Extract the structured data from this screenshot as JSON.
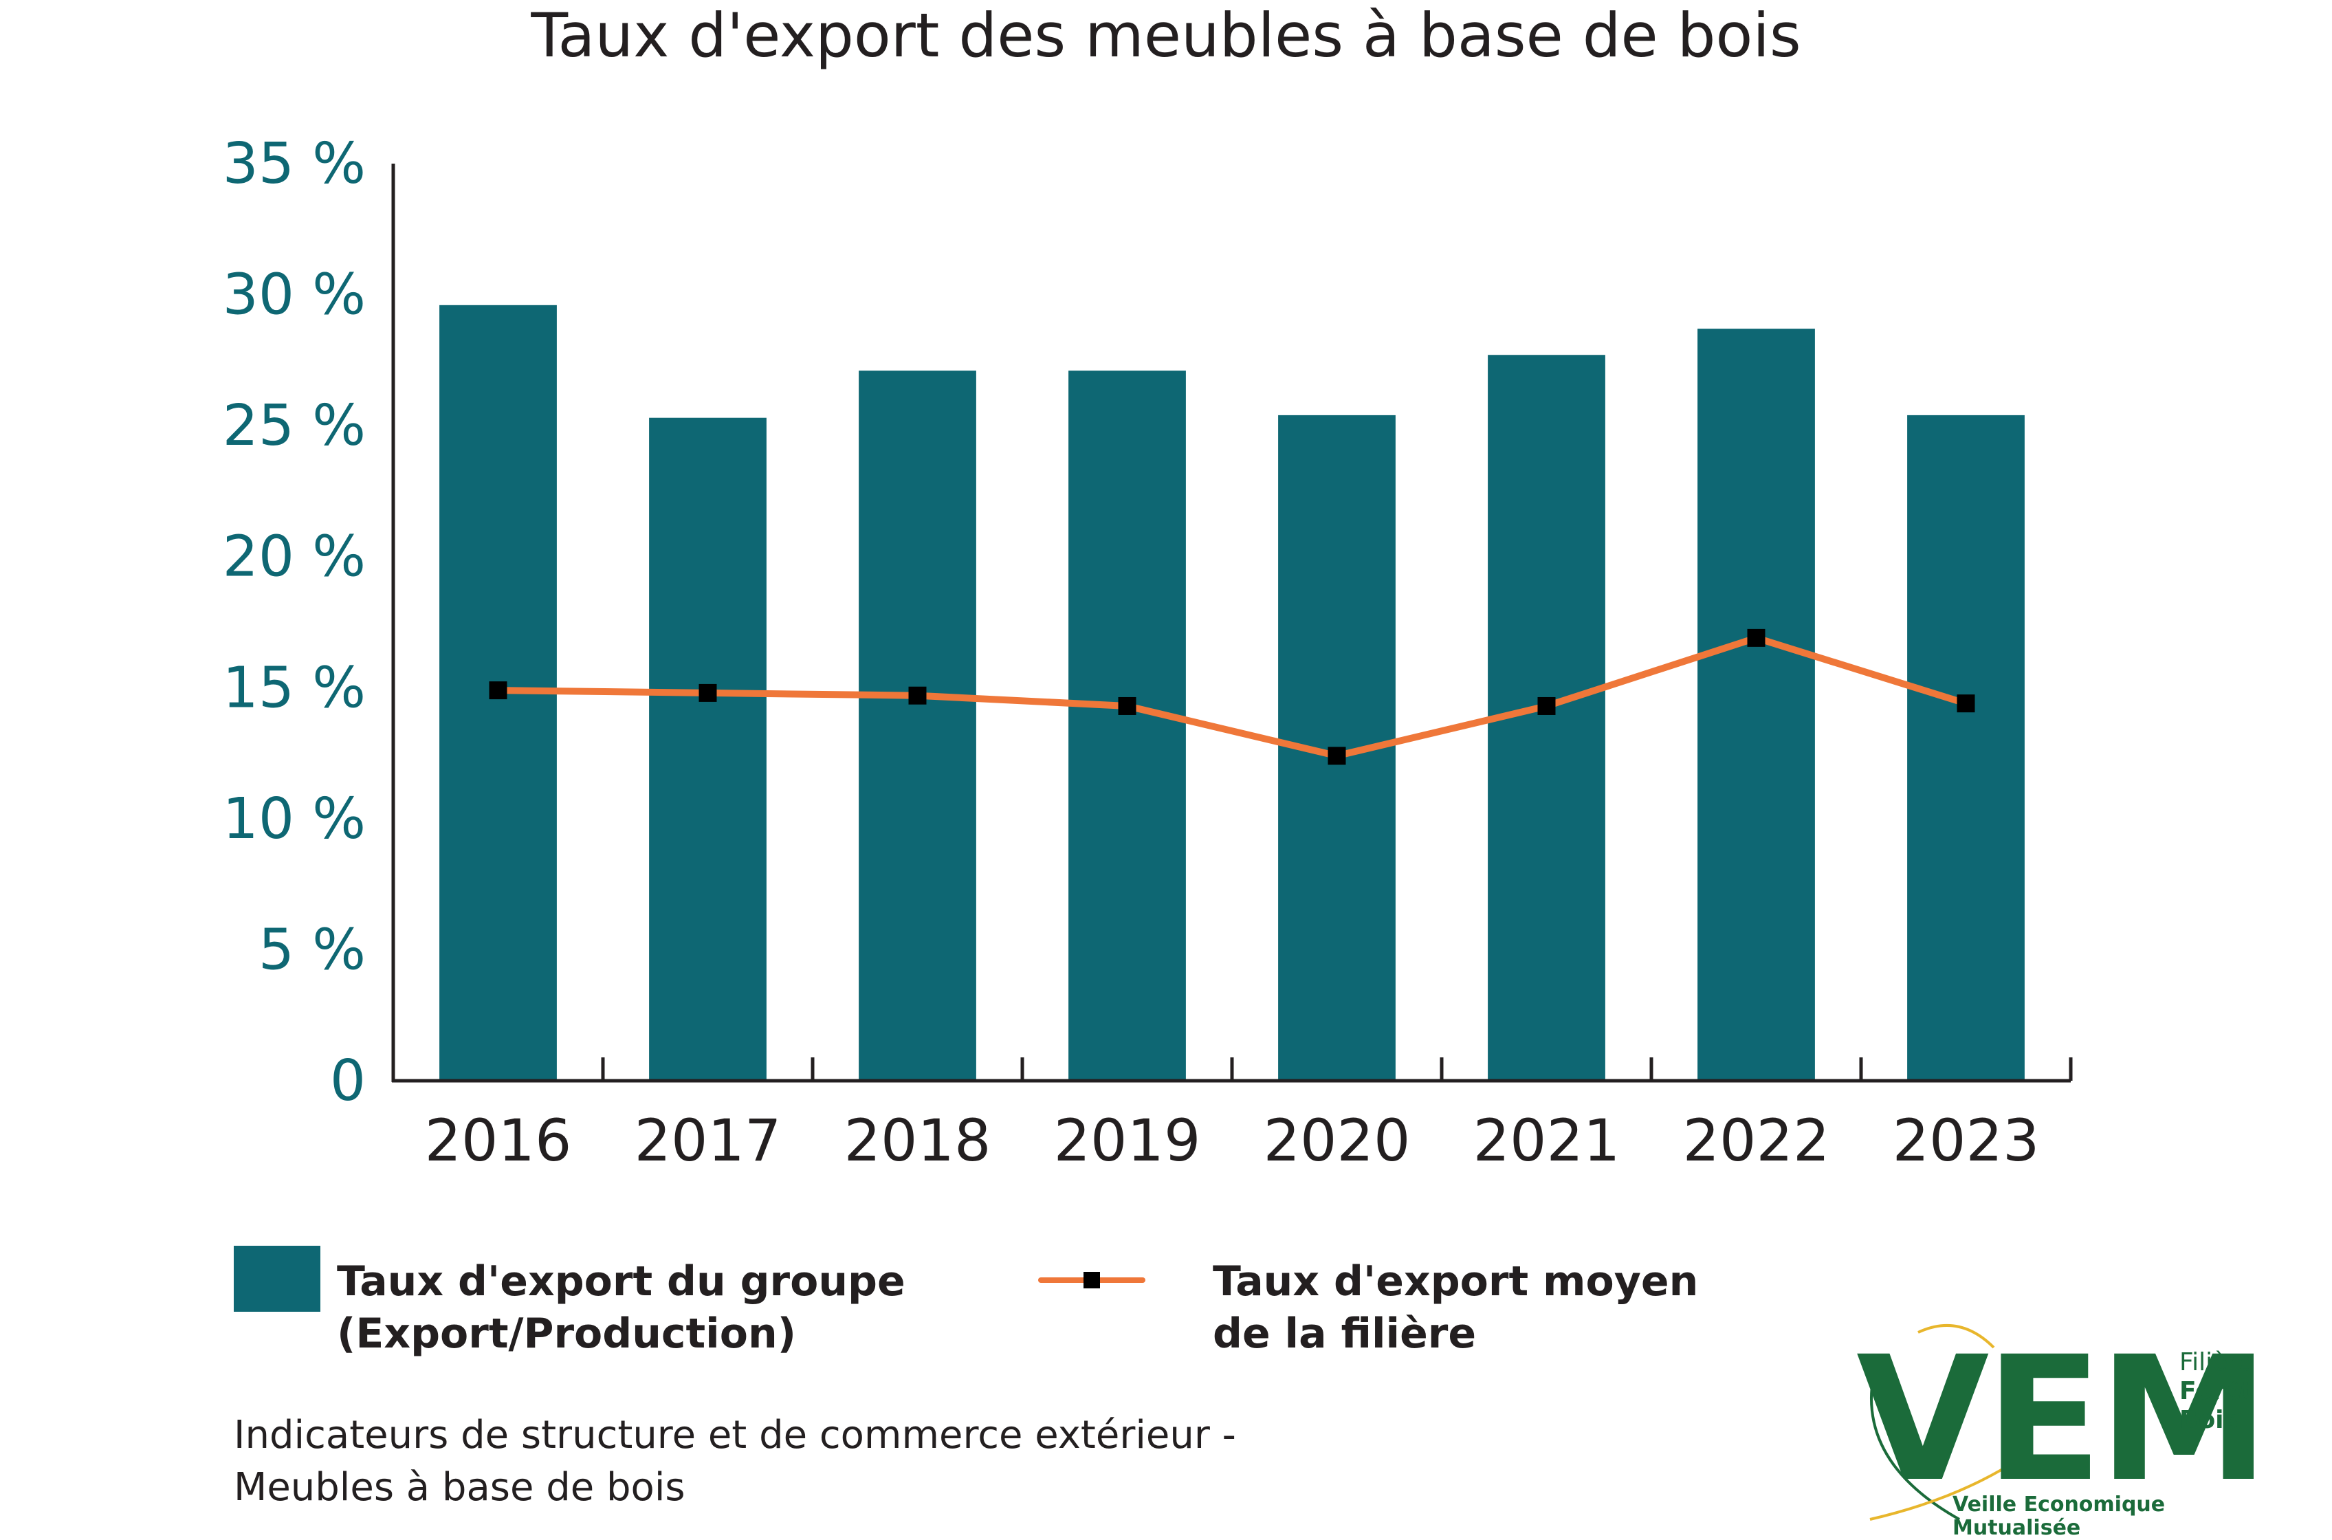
{
  "title": "Taux d'export des meubles à base de bois",
  "chart_data": {
    "type": "bar",
    "title": "Taux d'export des meubles à base de bois",
    "categories": [
      "2016",
      "2017",
      "2018",
      "2019",
      "2020",
      "2021",
      "2022",
      "2023"
    ],
    "series": [
      {
        "name": "Taux d'export du groupe (Export/Production)",
        "type": "bar",
        "color": "#0e6773",
        "values": [
          29.6,
          25.3,
          27.1,
          27.1,
          25.4,
          27.7,
          28.7,
          25.4
        ]
      },
      {
        "name": "Taux d'export moyen de la filière",
        "type": "line",
        "color": "#ef7739",
        "marker_color": "#000000",
        "values": [
          14.9,
          14.8,
          14.7,
          14.3,
          12.4,
          14.3,
          16.9,
          14.4
        ]
      }
    ],
    "yticks": [
      "0",
      "5 %",
      "10 %",
      "15 %",
      "20 %",
      "25 %",
      "30 %",
      "35 %"
    ],
    "ylim": [
      0,
      35
    ],
    "grid": false,
    "legend_position": "bottom"
  },
  "legend": {
    "bar_line1": "Taux d'export du groupe",
    "bar_line2": "(Export/Production)",
    "line_line1": "Taux d'export moyen",
    "line_line2": "de la filière"
  },
  "source": {
    "line1": "Indicateurs de structure et de commerce extérieur -",
    "line2": "Meubles à base de bois"
  },
  "logo": {
    "text_main": "VEM",
    "side_1": "Filière",
    "side_2": "Forêt",
    "side_3": "Bois",
    "tagline": "Veille Economique Mutualisée"
  },
  "colors": {
    "bar": "#0e6773",
    "line": "#ef7739",
    "axis_label": "#0e6773",
    "logo_green": "#1b6b3a",
    "logo_yellow": "#e8b62c"
  }
}
